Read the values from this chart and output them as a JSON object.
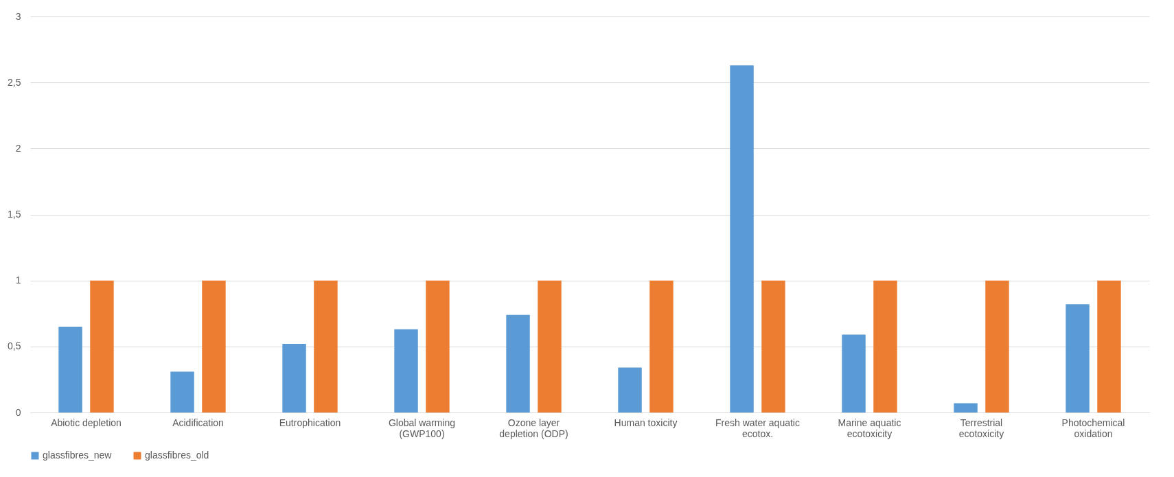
{
  "chart_data": {
    "type": "bar",
    "categories": [
      "Abiotic depletion",
      "Acidification",
      "Eutrophication",
      "Global warming (GWP100)",
      "Ozone layer depletion (ODP)",
      "Human toxicity",
      "Fresh water aquatic ecotox.",
      "Marine aquatic ecotoxicity",
      "Terrestrial ecotoxicity",
      "Photochemical oxidation"
    ],
    "series": [
      {
        "name": "glassfibres_new",
        "color": "#5b9bd5",
        "values": [
          0.65,
          0.31,
          0.52,
          0.63,
          0.74,
          0.34,
          2.63,
          0.59,
          0.07,
          0.82
        ]
      },
      {
        "name": "glassfibres_old",
        "color": "#ed7d31",
        "values": [
          1,
          1,
          1,
          1,
          1,
          1,
          1,
          1,
          1,
          1
        ]
      }
    ],
    "ylim": [
      0,
      3
    ],
    "yticks": [
      0,
      {
        "value": 0.5,
        "label": "0,5"
      },
      1,
      {
        "value": 1.5,
        "label": "1,5"
      },
      2,
      {
        "value": 2.5,
        "label": "2,5"
      },
      3
    ],
    "grid": "y",
    "legend": "bottom"
  }
}
